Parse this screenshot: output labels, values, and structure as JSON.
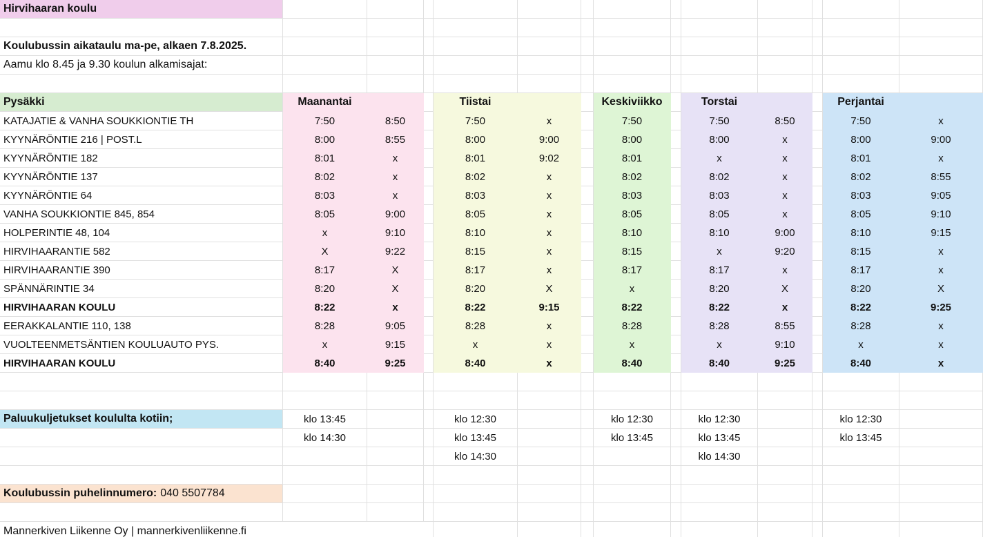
{
  "sheet": {
    "title": "Hirvihaaran koulu",
    "schedule_heading": "Koulubussin aikataulu ma-pe, alkaen 7.8.2025.",
    "schedule_note": "Aamu klo 8.45 ja 9.30 koulun alkamisajat:",
    "colors": {
      "title_bg": "#f0cdeb",
      "stop_header_bg": "#d6ecd0",
      "returns_bg": "#c2e6f3",
      "phone_bg": "#fbe3d0",
      "gridline": "#e0e0e0"
    },
    "table": {
      "stop_header": "Pysäkki",
      "days": [
        {
          "label": "Maanantai",
          "color": "#fce3ee",
          "cols": 2
        },
        {
          "label": "Tiistai",
          "color": "#f6f9de",
          "cols": 2
        },
        {
          "label": "Keskiviikko",
          "color": "#def5d5",
          "cols": 1
        },
        {
          "label": "Torstai",
          "color": "#e7e2f6",
          "cols": 2
        },
        {
          "label": "Perjantai",
          "color": "#cde4f7",
          "cols": 2
        }
      ],
      "rows": [
        {
          "stop": "KATAJATIE & VANHA SOUKKIONTIE TH",
          "bold": false,
          "times": [
            "7:50",
            "8:50",
            "7:50",
            "x",
            "7:50",
            "7:50",
            "8:50",
            "7:50",
            "x"
          ]
        },
        {
          "stop": "KYYNÄRÖNTIE 216 | POST.L",
          "bold": false,
          "times": [
            "8:00",
            "8:55",
            "8:00",
            "9:00",
            "8:00",
            "8:00",
            "x",
            "8:00",
            "9:00"
          ]
        },
        {
          "stop": "KYYNÄRÖNTIE 182",
          "bold": false,
          "times": [
            "8:01",
            "x",
            "8:01",
            "9:02",
            "8:01",
            "x",
            "x",
            "8:01",
            "x"
          ]
        },
        {
          "stop": "KYYNÄRÖNTIE 137",
          "bold": false,
          "times": [
            "8:02",
            "x",
            "8:02",
            "x",
            "8:02",
            "8:02",
            "x",
            "8:02",
            "8:55"
          ]
        },
        {
          "stop": "KYYNÄRÖNTIE 64",
          "bold": false,
          "times": [
            "8:03",
            "x",
            "8:03",
            "x",
            "8:03",
            "8:03",
            "x",
            "8:03",
            "9:05"
          ]
        },
        {
          "stop": "VANHA SOUKKIONTIE 845, 854",
          "bold": false,
          "times": [
            "8:05",
            "9:00",
            "8:05",
            "x",
            "8:05",
            "8:05",
            "x",
            "8:05",
            "9:10"
          ]
        },
        {
          "stop": "HOLPERINTIE 48, 104",
          "bold": false,
          "times": [
            "x",
            "9:10",
            "8:10",
            "x",
            "8:10",
            "8:10",
            "9:00",
            "8:10",
            "9:15"
          ]
        },
        {
          "stop": "HIRVIHAARANTIE 582",
          "bold": false,
          "times": [
            "X",
            "9:22",
            "8:15",
            "x",
            "8:15",
            "x",
            "9:20",
            "8:15",
            "x"
          ]
        },
        {
          "stop": "HIRVIHAARANTIE 390",
          "bold": false,
          "times": [
            "8:17",
            "X",
            "8:17",
            "x",
            "8:17",
            "8:17",
            "x",
            "8:17",
            "x"
          ]
        },
        {
          "stop": "SPÄNNÄRINTIE 34",
          "bold": false,
          "times": [
            "8:20",
            "X",
            "8:20",
            "X",
            "x",
            "8:20",
            "X",
            "8:20",
            "X"
          ]
        },
        {
          "stop": "HIRVIHAARAN KOULU",
          "bold": true,
          "times": [
            "8:22",
            "x",
            "8:22",
            "9:15",
            "8:22",
            "8:22",
            "x",
            "8:22",
            "9:25"
          ]
        },
        {
          "stop": "EERAKKALANTIE 110, 138",
          "bold": false,
          "times": [
            "8:28",
            "9:05",
            "8:28",
            "x",
            "8:28",
            "8:28",
            "8:55",
            "8:28",
            "x"
          ]
        },
        {
          "stop": "VUOLTEENMETSÄNTIEN KOULUAUTO PYS.",
          "bold": false,
          "times": [
            "x",
            "9:15",
            "x",
            "x",
            "x",
            "x",
            "9:10",
            "x",
            "x"
          ]
        },
        {
          "stop": "HIRVIHAARAN KOULU",
          "bold": true,
          "times": [
            "8:40",
            "9:25",
            "8:40",
            "x",
            "8:40",
            "8:40",
            "9:25",
            "8:40",
            "x"
          ]
        }
      ]
    },
    "returns": {
      "label": "Paluukuljetukset koululta kotiin;",
      "rows": [
        [
          "klo 13:45",
          "klo 12:30",
          "klo 12:30",
          "klo 12:30",
          "klo 12:30"
        ],
        [
          "klo 14:30",
          "klo 13:45",
          "klo 13:45",
          "klo 13:45",
          "klo 13:45"
        ],
        [
          "",
          "klo 14:30",
          "",
          "klo 14:30",
          ""
        ]
      ]
    },
    "phone": {
      "label": "Koulubussin puhelinnumero:",
      "number": "040 5507784"
    },
    "footer": "Mannerkiven Liikenne Oy | mannerkivenliikenne.fi"
  }
}
